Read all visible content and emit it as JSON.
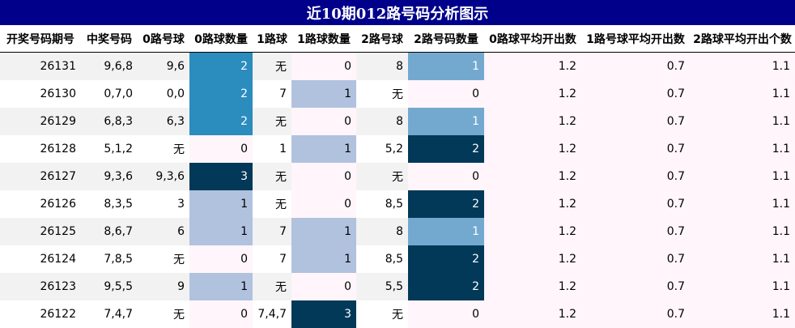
{
  "title": "近10期012路号码分析图示",
  "headers": [
    "开奖号码期号",
    "中奖号码",
    "0路号球",
    "0路球数量",
    "1路球",
    "1路球数量",
    "2路号球",
    "2路号码数量",
    "0路球平均开出数",
    "1路号球平均开出数",
    "2路球平均开出个数"
  ],
  "rows": [
    [
      "26131",
      "9,6,8",
      "9,6",
      "2",
      "无",
      "0",
      "8",
      "1",
      "1.2",
      "0.7",
      "1.1"
    ],
    [
      "26130",
      "0,7,0",
      "0,0",
      "2",
      "7",
      "1",
      "无",
      "0",
      "1.2",
      "0.7",
      "1.1"
    ],
    [
      "26129",
      "6,8,3",
      "6,3",
      "2",
      "无",
      "0",
      "8",
      "1",
      "1.2",
      "0.7",
      "1.1"
    ],
    [
      "26128",
      "5,1,2",
      "无",
      "0",
      "1",
      "1",
      "5,2",
      "2",
      "1.2",
      "0.7",
      "1.1"
    ],
    [
      "26127",
      "9,3,6",
      "9,3,6",
      "3",
      "无",
      "0",
      "无",
      "0",
      "1.2",
      "0.7",
      "1.1"
    ],
    [
      "26126",
      "8,3,5",
      "3",
      "1",
      "无",
      "0",
      "8,5",
      "2",
      "1.2",
      "0.7",
      "1.1"
    ],
    [
      "26125",
      "8,6,7",
      "6",
      "1",
      "7",
      "1",
      "8",
      "1",
      "1.2",
      "0.7",
      "1.1"
    ],
    [
      "26124",
      "7,8,5",
      "无",
      "0",
      "7",
      "1",
      "8,5",
      "2",
      "1.2",
      "0.7",
      "1.1"
    ],
    [
      "26123",
      "9,5,5",
      "9",
      "1",
      "无",
      "0",
      "5,5",
      "2",
      "1.2",
      "0.7",
      "1.1"
    ],
    [
      "26122",
      "7,4,7",
      "无",
      "0",
      "7,4,7",
      "3",
      "无",
      "0",
      "1.2",
      "0.7",
      "1.1"
    ]
  ],
  "heat_colors": {
    "zero": "#fff5fa",
    "one_light": "#b0c2de",
    "one_mid": "#74a9cf",
    "two_mid": "#2b8cbe",
    "dark": "#023858"
  }
}
